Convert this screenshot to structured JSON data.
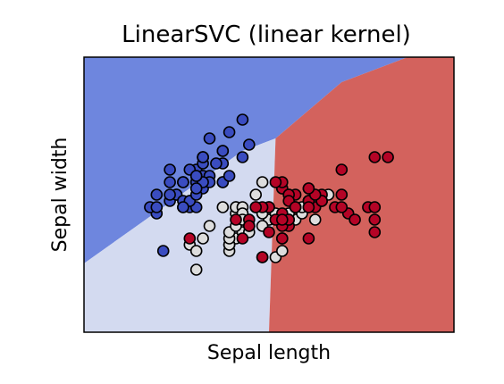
{
  "chart_data": {
    "type": "scatter",
    "title": "LinearSVC (linear kernel)",
    "xlabel": "Sepal length",
    "ylabel": "Sepal width",
    "xlim": [
      3.3,
      8.9
    ],
    "ylim": [
      1.0,
      5.4
    ],
    "show_ticks": false,
    "grid": false,
    "regions": [
      {
        "name": "class-0",
        "color": "#6e86de",
        "polygon": [
          [
            3.3,
            5.4
          ],
          [
            8.2,
            5.4
          ],
          [
            7.2,
            5.0
          ],
          [
            6.2,
            4.1
          ],
          [
            5.7,
            3.9
          ],
          [
            3.3,
            2.1
          ]
        ]
      },
      {
        "name": "class-1",
        "color": "#d3daf0",
        "polygon": [
          [
            3.3,
            2.1
          ],
          [
            5.7,
            3.9
          ],
          [
            6.2,
            4.1
          ],
          [
            6.1,
            1.0
          ],
          [
            3.3,
            1.0
          ]
        ]
      },
      {
        "name": "class-2",
        "color": "#d3625d",
        "polygon": [
          [
            6.2,
            4.1
          ],
          [
            7.2,
            5.0
          ],
          [
            8.2,
            5.4
          ],
          [
            8.9,
            5.4
          ],
          [
            8.9,
            1.0
          ],
          [
            8.2,
            1.0
          ],
          [
            6.1,
            1.0
          ]
        ]
      }
    ],
    "series": [
      {
        "color": "#3a4cc0",
        "points": [
          [
            5.1,
            3.5
          ],
          [
            4.9,
            3.0
          ],
          [
            4.7,
            3.2
          ],
          [
            4.6,
            3.1
          ],
          [
            5.0,
            3.6
          ],
          [
            5.4,
            3.9
          ],
          [
            4.6,
            3.4
          ],
          [
            5.0,
            3.4
          ],
          [
            4.4,
            2.9
          ],
          [
            4.9,
            3.1
          ],
          [
            5.4,
            3.7
          ],
          [
            4.8,
            3.4
          ],
          [
            4.8,
            3.0
          ],
          [
            4.3,
            3.0
          ],
          [
            5.8,
            4.0
          ],
          [
            5.7,
            4.4
          ],
          [
            5.4,
            3.9
          ],
          [
            5.1,
            3.5
          ],
          [
            5.7,
            3.8
          ],
          [
            5.1,
            3.8
          ],
          [
            5.4,
            3.4
          ],
          [
            5.1,
            3.7
          ],
          [
            4.6,
            3.6
          ],
          [
            5.1,
            3.3
          ],
          [
            4.8,
            3.4
          ],
          [
            5.0,
            3.0
          ],
          [
            5.0,
            3.4
          ],
          [
            5.2,
            3.5
          ],
          [
            5.2,
            3.4
          ],
          [
            4.7,
            3.2
          ],
          [
            4.8,
            3.1
          ],
          [
            5.4,
            3.4
          ],
          [
            5.2,
            4.1
          ],
          [
            5.5,
            4.2
          ],
          [
            4.9,
            3.1
          ],
          [
            5.0,
            3.2
          ],
          [
            5.5,
            3.5
          ],
          [
            4.9,
            3.6
          ],
          [
            4.4,
            3.0
          ],
          [
            5.1,
            3.4
          ],
          [
            5.0,
            3.5
          ],
          [
            4.5,
            2.3
          ],
          [
            4.4,
            3.2
          ],
          [
            5.0,
            3.5
          ],
          [
            5.1,
            3.8
          ],
          [
            4.8,
            3.0
          ],
          [
            5.1,
            3.8
          ],
          [
            4.6,
            3.2
          ],
          [
            5.3,
            3.7
          ],
          [
            5.0,
            3.3
          ]
        ]
      },
      {
        "color": "#dddddd",
        "points": [
          [
            7.0,
            3.2
          ],
          [
            6.4,
            3.2
          ],
          [
            6.9,
            3.1
          ],
          [
            5.5,
            2.3
          ],
          [
            6.5,
            2.8
          ],
          [
            5.7,
            2.8
          ],
          [
            6.3,
            3.3
          ],
          [
            4.9,
            2.4
          ],
          [
            6.6,
            2.9
          ],
          [
            5.2,
            2.7
          ],
          [
            5.0,
            2.0
          ],
          [
            5.9,
            3.0
          ],
          [
            6.0,
            2.2
          ],
          [
            6.1,
            2.9
          ],
          [
            5.6,
            2.9
          ],
          [
            6.7,
            3.1
          ],
          [
            5.6,
            3.0
          ],
          [
            5.8,
            2.7
          ],
          [
            6.2,
            2.2
          ],
          [
            5.6,
            2.5
          ],
          [
            5.9,
            3.2
          ],
          [
            6.1,
            2.8
          ],
          [
            6.3,
            2.5
          ],
          [
            6.1,
            2.8
          ],
          [
            6.4,
            2.9
          ],
          [
            6.6,
            3.0
          ],
          [
            6.8,
            2.8
          ],
          [
            6.7,
            3.0
          ],
          [
            6.0,
            2.9
          ],
          [
            5.7,
            2.6
          ],
          [
            5.5,
            2.4
          ],
          [
            5.5,
            2.4
          ],
          [
            5.8,
            2.7
          ],
          [
            6.0,
            2.7
          ],
          [
            5.4,
            3.0
          ],
          [
            6.0,
            3.4
          ],
          [
            6.7,
            3.1
          ],
          [
            6.3,
            2.3
          ],
          [
            5.6,
            3.0
          ],
          [
            5.5,
            2.5
          ],
          [
            5.5,
            2.6
          ],
          [
            6.1,
            3.0
          ],
          [
            5.8,
            2.6
          ],
          [
            5.0,
            2.3
          ],
          [
            5.6,
            2.7
          ],
          [
            5.7,
            3.0
          ],
          [
            5.7,
            2.9
          ],
          [
            6.2,
            2.9
          ],
          [
            5.1,
            2.5
          ],
          [
            5.7,
            2.8
          ]
        ]
      },
      {
        "color": "#b40426",
        "points": [
          [
            6.3,
            3.3
          ],
          [
            5.8,
            2.7
          ],
          [
            7.1,
            3.0
          ],
          [
            6.3,
            2.9
          ],
          [
            6.5,
            3.0
          ],
          [
            7.6,
            3.0
          ],
          [
            4.9,
            2.5
          ],
          [
            7.3,
            2.9
          ],
          [
            6.7,
            2.5
          ],
          [
            7.2,
            3.6
          ],
          [
            6.5,
            3.2
          ],
          [
            6.4,
            2.7
          ],
          [
            6.8,
            3.0
          ],
          [
            5.7,
            2.5
          ],
          [
            5.8,
            2.8
          ],
          [
            6.4,
            3.2
          ],
          [
            6.5,
            3.0
          ],
          [
            7.7,
            3.8
          ],
          [
            7.7,
            2.6
          ],
          [
            6.0,
            2.2
          ],
          [
            6.9,
            3.2
          ],
          [
            5.6,
            2.8
          ],
          [
            7.7,
            2.8
          ],
          [
            6.3,
            2.7
          ],
          [
            6.7,
            3.3
          ],
          [
            7.2,
            3.2
          ],
          [
            6.2,
            2.8
          ],
          [
            6.1,
            3.0
          ],
          [
            6.4,
            2.8
          ],
          [
            7.2,
            3.0
          ],
          [
            7.4,
            2.8
          ],
          [
            7.9,
            3.8
          ],
          [
            6.4,
            2.8
          ],
          [
            6.3,
            2.8
          ],
          [
            6.1,
            2.6
          ],
          [
            7.7,
            3.0
          ],
          [
            6.3,
            3.4
          ],
          [
            6.4,
            3.1
          ],
          [
            6.0,
            3.0
          ],
          [
            6.9,
            3.1
          ],
          [
            6.7,
            3.1
          ],
          [
            6.9,
            3.1
          ],
          [
            5.8,
            2.7
          ],
          [
            6.8,
            3.2
          ],
          [
            6.7,
            3.3
          ],
          [
            6.7,
            3.0
          ],
          [
            6.3,
            2.5
          ],
          [
            6.5,
            3.0
          ],
          [
            6.2,
            3.4
          ],
          [
            5.9,
            3.0
          ]
        ]
      }
    ]
  }
}
